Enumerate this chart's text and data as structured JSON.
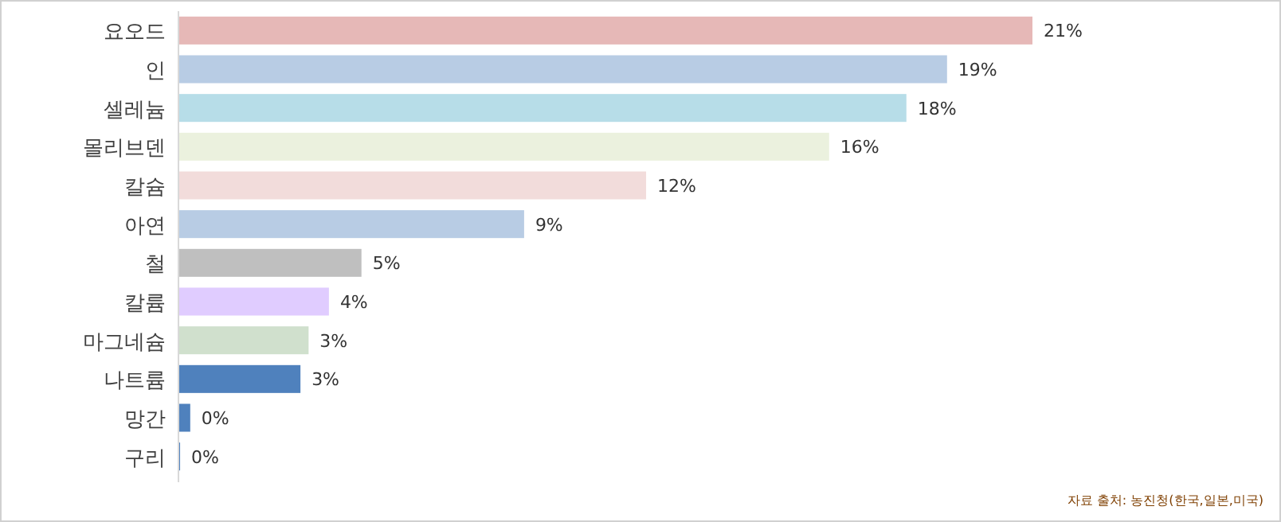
{
  "chart_data": {
    "type": "bar",
    "orientation": "horizontal",
    "categories": [
      "요오드",
      "인",
      "셀레늄",
      "몰리브덴",
      "칼슘",
      "아연",
      "철",
      "칼륨",
      "마그네슘",
      "나트륨",
      "망간",
      "구리"
    ],
    "values": [
      21,
      18.9,
      17.9,
      16,
      11.5,
      8.5,
      4.5,
      3.7,
      3.2,
      3,
      0.29,
      0.04
    ],
    "colors": [
      "#e6b8b7",
      "#b8cce4",
      "#b7dde8",
      "#ebf1de",
      "#f2dcdb",
      "#b8cce4",
      "#bfbfbf",
      "#e0ccff",
      "#d0e0cd",
      "#4f81bd",
      "#4f81bd",
      "#4f81bd"
    ],
    "value_labels": [
      "21%",
      "19%",
      "18%",
      "16%",
      "12%",
      "9%",
      "5%",
      "4%",
      "3%",
      "3%",
      "0%",
      "0%"
    ],
    "annotations": [
      "자료 출처: 농진청(한국,일본,미국)"
    ]
  }
}
